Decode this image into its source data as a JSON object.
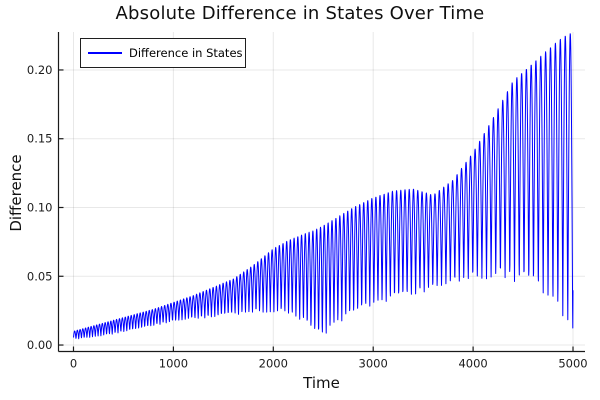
{
  "figure": {
    "title": "Absolute Difference in States Over Time",
    "background_color": "#ffffff",
    "axis_color": "#1a1a1a",
    "grid_color": "rgba(0,0,0,0.09)"
  },
  "legend": {
    "label": "Difference in States",
    "line_color": "#0000ff",
    "border_color": "#1f1f1f",
    "position": "top-left"
  },
  "chart_data": {
    "type": "line",
    "title": "Absolute Difference in States Over Time",
    "xlabel": "Time",
    "ylabel": "Difference",
    "xlim": [
      -150,
      5120
    ],
    "ylim": [
      -0.0047,
      0.2276
    ],
    "grid": true,
    "legend_position": "top-left",
    "xticks": {
      "values": [
        0,
        1000,
        2000,
        3000,
        4000,
        5000
      ],
      "labels": [
        "0",
        "1000",
        "2000",
        "3000",
        "4000",
        "5000"
      ]
    },
    "yticks": {
      "values": [
        0.0,
        0.05,
        0.1,
        0.15,
        0.2
      ],
      "labels": [
        "0.00",
        "0.05",
        "0.10",
        "0.15",
        "0.20"
      ]
    },
    "series": [
      {
        "name": "Difference in States",
        "color": "#0000ff",
        "description": "Absolute value of a rapidly oscillating difference signal; oscillates between slowly varying lower and upper envelopes with a beat node near t=2480, a local envelope maximum 0.113 near t=3300, a shallow dip 0.109 near t=3570, and a global maximum about 0.227 near t=4950; trace ends near 0.005 at t=5000.",
        "envelope": {
          "t": [
            0,
            200,
            400,
            600,
            800,
            1000,
            1200,
            1400,
            1600,
            1800,
            2000,
            2150,
            2300,
            2400,
            2480,
            2600,
            2800,
            3000,
            3200,
            3400,
            3600,
            3800,
            4000,
            4200,
            4400,
            4600,
            4800,
            4900,
            5000
          ],
          "lower": [
            0.004,
            0.006,
            0.008,
            0.011,
            0.014,
            0.017,
            0.019,
            0.02,
            0.022,
            0.023,
            0.024,
            0.022,
            0.016,
            0.008,
            0.004,
            0.013,
            0.021,
            0.028,
            0.032,
            0.035,
            0.04,
            0.044,
            0.047,
            0.0485,
            0.046,
            0.041,
            0.028,
            0.021,
            0.005
          ],
          "upper": [
            0.01,
            0.014,
            0.018,
            0.022,
            0.026,
            0.031,
            0.036,
            0.042,
            0.048,
            0.058,
            0.07,
            0.076,
            0.0805,
            0.083,
            0.086,
            0.091,
            0.1,
            0.107,
            0.112,
            0.1135,
            0.109,
            0.12,
            0.14,
            0.165,
            0.192,
            0.205,
            0.218,
            0.224,
            0.2275
          ]
        },
        "oscillation": {
          "carrier_period_start": 27,
          "carrier_period_growth_per_t": 0.0046,
          "phase_offset": 0.25,
          "sample_step": 2,
          "t_start": 0,
          "t_end": 5000
        }
      }
    ]
  }
}
